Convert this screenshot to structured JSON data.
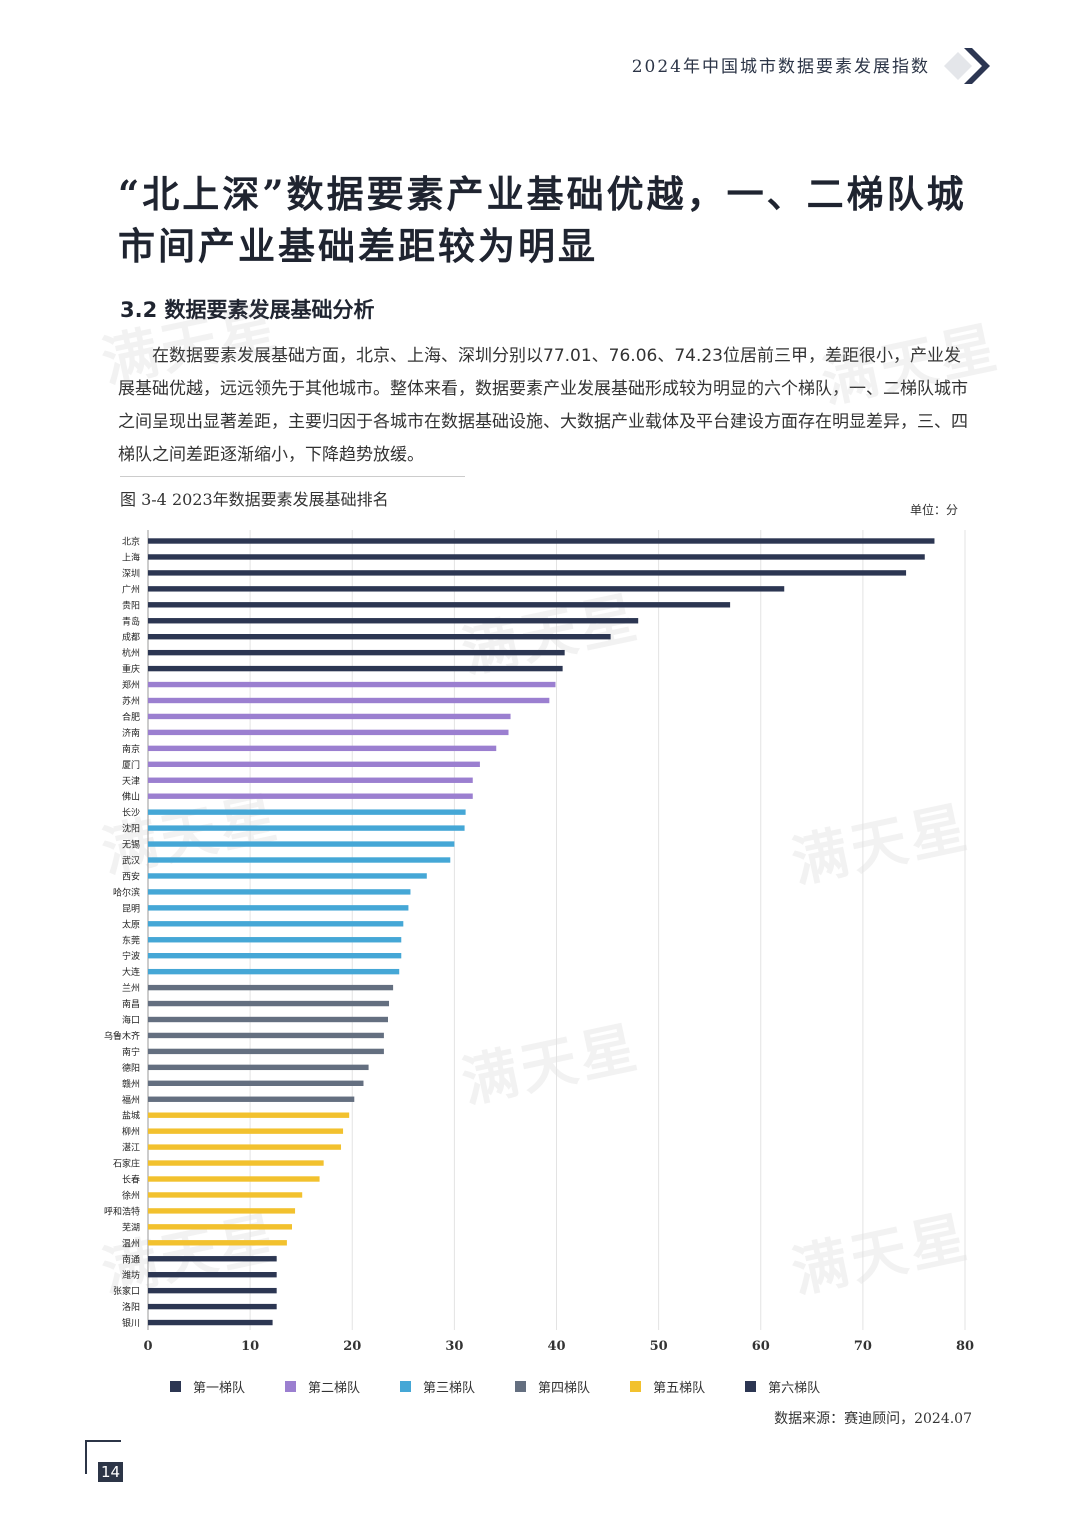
{
  "header": {
    "title": "2024年中国城市数据要素发展指数"
  },
  "page_title": "“北上深”数据要素产业基础优越，一、二梯队城市间产业基础差距较为明显",
  "section": {
    "heading": "3.2 数据要素发展基础分析"
  },
  "body_text": "在数据要素发展基础方面，北京、上海、深圳分别以77.01、76.06、74.23位居前三甲，差距很小，产业发展基础优越，远远领先于其他城市。整体来看，数据要素产业发展基础形成较为明显的六个梯队，一、二梯队城市之间呈现出显著差距，主要归因于各城市在数据基础设施、大数据产业载体及平台建设方面存在明显差异，三、四梯队之间差距逐渐缩小，下降趋势放缓。",
  "figure": {
    "caption": "图 3-4    2023年数据要素发展基础排名",
    "unit": "单位：分"
  },
  "watermark": "满天星",
  "chart_data": {
    "type": "bar",
    "orientation": "horizontal",
    "title": "2023年数据要素发展基础排名",
    "unit": "单位：分",
    "xlim": [
      0,
      80
    ],
    "xticks": [
      0,
      10,
      20,
      30,
      40,
      50,
      60,
      70,
      80
    ],
    "tier_colors": [
      "#2c3652",
      "#9b7fd0",
      "#45a7d6",
      "#646f80",
      "#f2c12e",
      "#2c3652"
    ],
    "legend": [
      "第一梯队",
      "第二梯队",
      "第三梯队",
      "第四梯队",
      "第五梯队",
      "第六梯队"
    ],
    "categories": [
      "北京",
      "上海",
      "深圳",
      "广州",
      "贵阳",
      "青岛",
      "成都",
      "杭州",
      "重庆",
      "郑州",
      "苏州",
      "合肥",
      "济南",
      "南京",
      "厦门",
      "天津",
      "佛山",
      "长沙",
      "沈阳",
      "无锡",
      "武汉",
      "西安",
      "哈尔滨",
      "昆明",
      "太原",
      "东莞",
      "宁波",
      "大连",
      "兰州",
      "南昌",
      "海口",
      "乌鲁木齐",
      "南宁",
      "德阳",
      "赣州",
      "福州",
      "盐城",
      "柳州",
      "湛江",
      "石家庄",
      "长春",
      "徐州",
      "呼和浩特",
      "芜湖",
      "温州",
      "南通",
      "潍坊",
      "张家口",
      "洛阳",
      "银川"
    ],
    "values": [
      77.01,
      76.06,
      74.23,
      62.3,
      57.0,
      48.0,
      45.3,
      40.8,
      40.6,
      39.9,
      39.3,
      35.5,
      35.3,
      34.1,
      32.5,
      31.8,
      31.8,
      31.1,
      31.0,
      30.0,
      29.6,
      27.3,
      25.7,
      25.5,
      25.0,
      24.8,
      24.8,
      24.6,
      24.0,
      23.6,
      23.5,
      23.1,
      23.1,
      21.6,
      21.1,
      20.2,
      19.7,
      19.1,
      18.9,
      17.2,
      16.8,
      15.1,
      14.4,
      14.1,
      13.6,
      12.6,
      12.6,
      12.6,
      12.6,
      12.2
    ],
    "tiers": [
      1,
      1,
      1,
      1,
      1,
      1,
      1,
      1,
      1,
      2,
      2,
      2,
      2,
      2,
      2,
      2,
      2,
      3,
      3,
      3,
      3,
      3,
      3,
      3,
      3,
      3,
      3,
      3,
      4,
      4,
      4,
      4,
      4,
      4,
      4,
      4,
      5,
      5,
      5,
      5,
      5,
      5,
      5,
      5,
      5,
      6,
      6,
      6,
      6,
      6
    ]
  },
  "source": "数据来源：赛迪顾问，2024.07",
  "page_number": "14"
}
